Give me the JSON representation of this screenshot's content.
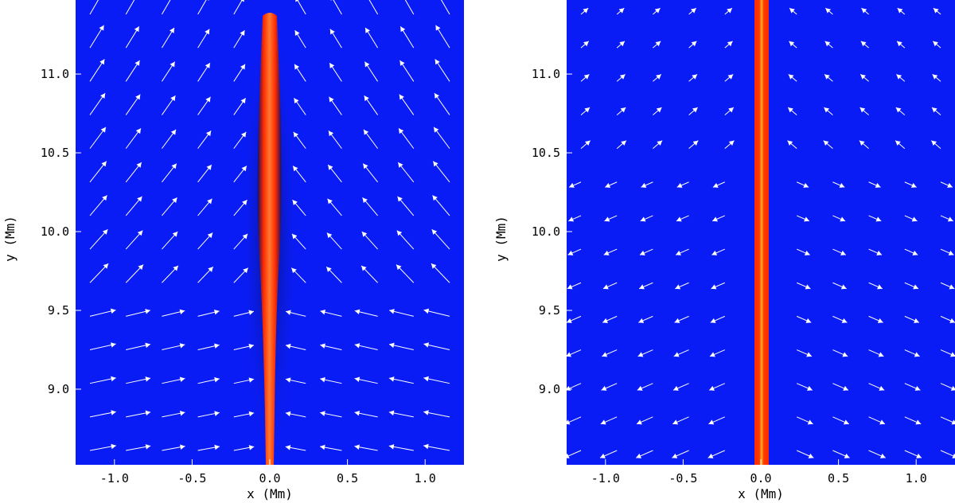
{
  "figure": {
    "panels": [
      {
        "id": "left",
        "xlabel": "x (Mm)",
        "ylabel": "y (Mm)",
        "xticks": [
          "-1.0",
          "-0.5",
          "0.0",
          "0.5",
          "1.0"
        ],
        "yticks": [
          "9.0",
          "9.5",
          "10.0",
          "10.5",
          "11.0"
        ],
        "xlim": [
          -1.25,
          1.25
        ],
        "ylim": [
          8.52,
          11.47
        ],
        "background_color": "#0a1cf5",
        "jet_color": "#ff2a00",
        "jet_core_color": "#ff7a30",
        "jet_halfwidth_mm": 0.06
      },
      {
        "id": "right",
        "xlabel": "x (Mm)",
        "ylabel": "y (Mm)",
        "xticks": [
          "-1.0",
          "-0.5",
          "0.0",
          "0.5",
          "1.0"
        ],
        "yticks": [
          "9.0",
          "9.5",
          "10.0",
          "10.5",
          "11.0"
        ],
        "xlim": [
          -1.25,
          1.25
        ],
        "ylim": [
          8.52,
          11.47
        ],
        "background_color": "#0a1cf5",
        "jet_color": "#ff2a00",
        "jet_core_color": "#ffb020",
        "jet_halfwidth_mm": 0.035
      }
    ],
    "arrow_color": "#ffffff"
  }
}
